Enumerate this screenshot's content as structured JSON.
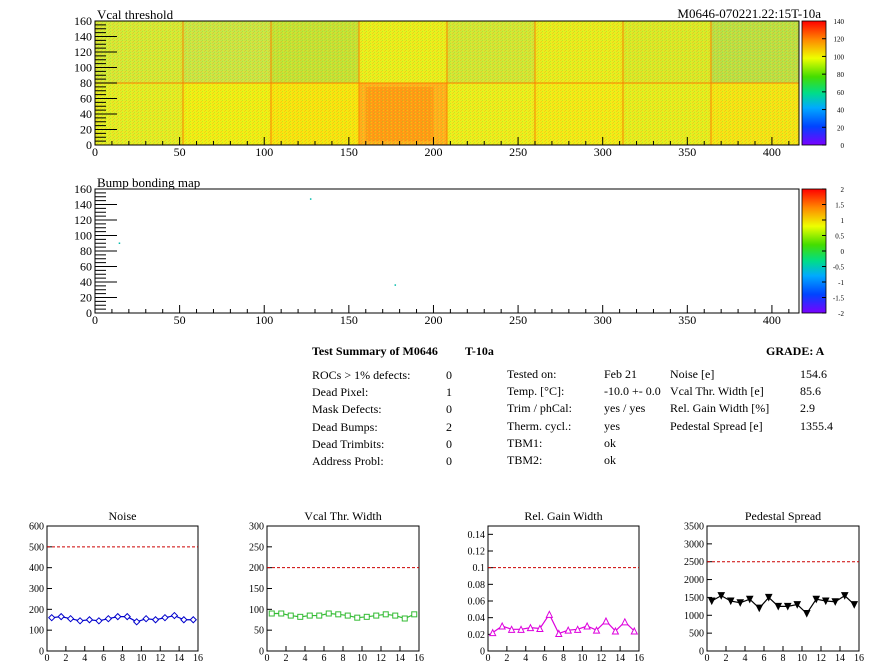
{
  "module_id": "M0646-070221.22:15T-10a",
  "maps": [
    {
      "title": "Vcal threshold",
      "x_ticks": [
        0,
        50,
        100,
        150,
        200,
        250,
        300,
        350,
        400
      ],
      "y_ticks": [
        0,
        20,
        40,
        60,
        80,
        100,
        120,
        140,
        160
      ],
      "xlim": [
        0,
        416
      ],
      "ylim": [
        0,
        160
      ],
      "palette_ticks": [
        "0",
        "20",
        "40",
        "60",
        "80",
        "100",
        "120",
        "140"
      ]
    },
    {
      "title": "Bump bonding map",
      "x_ticks": [
        0,
        50,
        100,
        150,
        200,
        250,
        300,
        350,
        400
      ],
      "y_ticks": [
        0,
        20,
        40,
        60,
        80,
        100,
        120,
        140,
        160
      ],
      "xlim": [
        0,
        416
      ],
      "ylim": [
        0,
        160
      ],
      "palette_ticks": [
        "-2",
        "-1.5",
        "-1",
        "-0.5",
        "0",
        "0.5",
        "1",
        "1.5",
        "2"
      ]
    }
  ],
  "summary": {
    "title": "Test Summary of M0646",
    "tag": "T-10a",
    "grade": "GRADE:  A",
    "left": [
      {
        "label": "ROCs > 1% defects:",
        "value": "0"
      },
      {
        "label": "Dead Pixel:",
        "value": "1"
      },
      {
        "label": "Mask Defects:",
        "value": "0"
      },
      {
        "label": "Dead Bumps:",
        "value": "2"
      },
      {
        "label": "Dead Trimbits:",
        "value": "0"
      },
      {
        "label": "Address Probl:",
        "value": "0"
      }
    ],
    "middle": [
      {
        "label": "Tested on:",
        "value": "Feb 21"
      },
      {
        "label": "Temp. [°C]:",
        "value": "-10.0 +- 0.0"
      },
      {
        "label": "Trim / phCal:",
        "value": "yes / yes"
      },
      {
        "label": "Therm. cycl.:",
        "value": "yes"
      },
      {
        "label": "TBM1:",
        "value": "ok"
      },
      {
        "label": "TBM2:",
        "value": "ok"
      }
    ],
    "right": [
      {
        "label": "Noise [e]",
        "value": "154.6"
      },
      {
        "label": "Vcal Thr. Width [e]",
        "value": "85.6"
      },
      {
        "label": "Rel. Gain Width [%]",
        "value": "2.9"
      },
      {
        "label": "Pedestal Spread [e]",
        "value": "1355.4"
      }
    ]
  },
  "chart_data": [
    {
      "type": "line",
      "title": "Noise",
      "color": "#0000cc",
      "marker": "diamond",
      "x": [
        0,
        1,
        2,
        3,
        4,
        5,
        6,
        7,
        8,
        9,
        10,
        11,
        12,
        13,
        14,
        15
      ],
      "values": [
        160,
        165,
        155,
        145,
        150,
        145,
        155,
        165,
        165,
        140,
        155,
        150,
        160,
        170,
        150,
        150
      ],
      "threshold": 500,
      "xlim": [
        0,
        16
      ],
      "ylim": [
        0,
        600
      ],
      "x_ticks": [
        0,
        2,
        4,
        6,
        8,
        10,
        12,
        14,
        16
      ],
      "y_ticks": [
        0,
        100,
        200,
        300,
        400,
        500,
        600
      ],
      "y_tick_labels": [
        "0",
        "100",
        "200",
        "300",
        "400",
        "500",
        "600"
      ]
    },
    {
      "type": "line",
      "title": "Vcal Thr. Width",
      "color": "#33bb33",
      "marker": "square",
      "x": [
        0,
        1,
        2,
        3,
        4,
        5,
        6,
        7,
        8,
        9,
        10,
        11,
        12,
        13,
        14,
        15
      ],
      "values": [
        90,
        90,
        85,
        82,
        85,
        85,
        90,
        88,
        85,
        80,
        82,
        85,
        88,
        85,
        78,
        88
      ],
      "threshold": 200,
      "xlim": [
        0,
        16
      ],
      "ylim": [
        0,
        300
      ],
      "x_ticks": [
        0,
        2,
        4,
        6,
        8,
        10,
        12,
        14,
        16
      ],
      "y_ticks": [
        0,
        50,
        100,
        150,
        200,
        250,
        300
      ],
      "y_tick_labels": [
        "0",
        "50",
        "100",
        "150",
        "200",
        "250",
        "300"
      ]
    },
    {
      "type": "line",
      "title": "Rel. Gain Width",
      "color": "#dd00dd",
      "marker": "triangle",
      "x": [
        0,
        1,
        2,
        3,
        4,
        5,
        6,
        7,
        8,
        9,
        10,
        11,
        12,
        13,
        14,
        15
      ],
      "values": [
        0.022,
        0.03,
        0.026,
        0.026,
        0.028,
        0.027,
        0.044,
        0.021,
        0.025,
        0.026,
        0.03,
        0.025,
        0.036,
        0.024,
        0.035,
        0.024
      ],
      "threshold": 0.1,
      "xlim": [
        0,
        16
      ],
      "ylim": [
        0,
        0.15
      ],
      "x_ticks": [
        0,
        2,
        4,
        6,
        8,
        10,
        12,
        14,
        16
      ],
      "y_ticks": [
        0,
        0.02,
        0.04,
        0.06,
        0.08,
        0.1,
        0.12,
        0.14
      ],
      "y_tick_labels": [
        "0",
        "0.02",
        "0.04",
        "0.06",
        "0.08",
        "0.1",
        "0.12",
        "0.14"
      ]
    },
    {
      "type": "line",
      "title": "Pedestal Spread",
      "color": "#000000",
      "marker": "triangle-down",
      "x": [
        0,
        1,
        2,
        3,
        4,
        5,
        6,
        7,
        8,
        9,
        10,
        11,
        12,
        13,
        14,
        15
      ],
      "values": [
        1400,
        1550,
        1400,
        1350,
        1450,
        1200,
        1500,
        1250,
        1250,
        1300,
        1050,
        1450,
        1400,
        1380,
        1550,
        1300
      ],
      "threshold": 2500,
      "xlim": [
        0,
        16
      ],
      "ylim": [
        0,
        3500
      ],
      "x_ticks": [
        0,
        2,
        4,
        6,
        8,
        10,
        12,
        14,
        16
      ],
      "y_ticks": [
        0,
        500,
        1000,
        1500,
        2000,
        2500,
        3000,
        3500
      ],
      "y_tick_labels": [
        "0",
        "500",
        "1000",
        "1500",
        "2000",
        "2500",
        "3000",
        "3500"
      ]
    }
  ]
}
